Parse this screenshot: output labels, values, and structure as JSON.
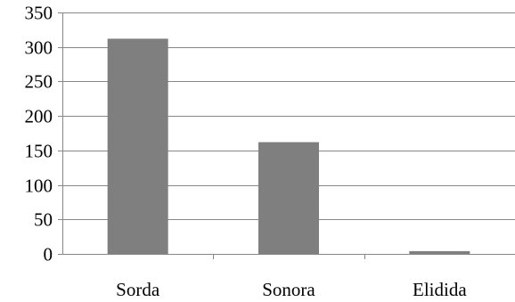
{
  "chart_data": {
    "type": "bar",
    "title": "",
    "xlabel": "",
    "ylabel": "",
    "categories": [
      "Sorda",
      "Sonora",
      "Elidida"
    ],
    "values": [
      312,
      162,
      4
    ],
    "ylim": [
      0,
      350
    ],
    "y_ticks": [
      0,
      50,
      100,
      150,
      200,
      250,
      300,
      350
    ],
    "y_tick_labels": [
      "0",
      "50",
      "100",
      "150",
      "200",
      "250",
      "300",
      "350"
    ],
    "grid": true,
    "legend": "none",
    "bar_color": "#7f7f7f",
    "grid_color": "#878787"
  }
}
